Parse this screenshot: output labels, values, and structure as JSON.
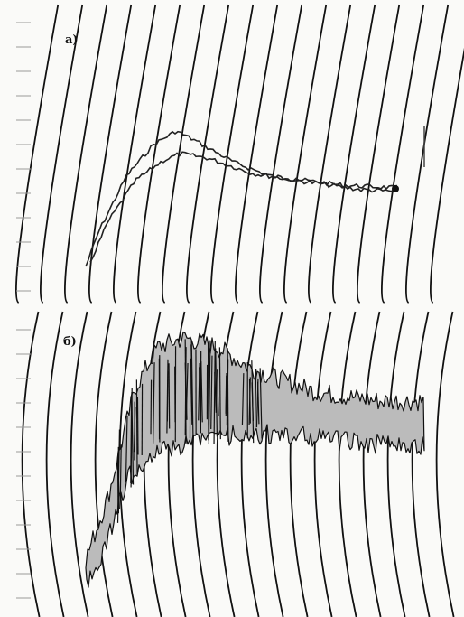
{
  "panels": [
    {
      "label": "a)"
    },
    {
      "label": "б)"
    }
  ]
}
